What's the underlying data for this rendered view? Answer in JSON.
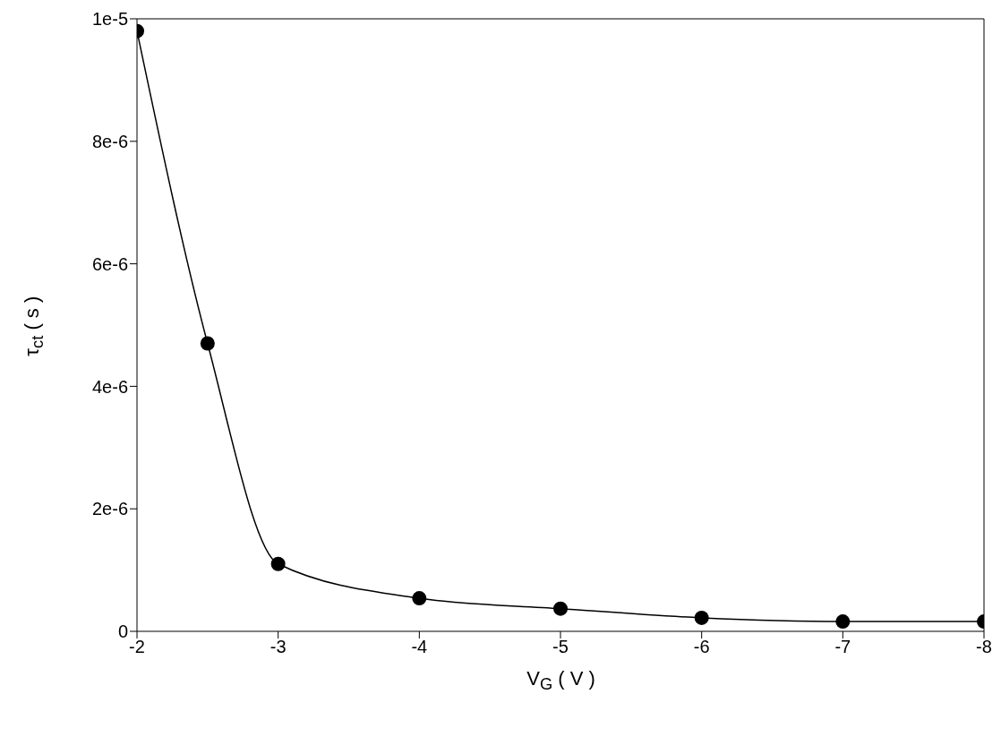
{
  "chart_data": {
    "type": "line",
    "xlabel": "V$_{G}$ ( V )",
    "ylabel": "τ$_{ct}$ ( s )",
    "x": [
      -2,
      -2.5,
      -3,
      -4,
      -5,
      -6,
      -7,
      -8
    ],
    "series": [
      {
        "color": "#000000",
        "values": [
          9.8e-06,
          4.7e-06,
          1.1e-06,
          5.4e-07,
          3.7e-07,
          2.2e-07,
          1.6e-07,
          1.6e-07
        ]
      }
    ],
    "xlim": [
      -2,
      -8
    ],
    "xticks": [
      -2,
      -3,
      -4,
      -5,
      -6,
      -7,
      -8
    ],
    "ylim": [
      0,
      1e-05
    ],
    "yticks": [
      0,
      {
        "value": 2e-06,
        "label": "2e-6"
      },
      {
        "value": 4e-06,
        "label": "4e-6"
      },
      {
        "value": 6e-06,
        "label": "6e-6"
      },
      {
        "value": 8e-06,
        "label": "8e-6"
      },
      {
        "value": 1e-05,
        "label": "1e-5"
      }
    ],
    "marker": "circle",
    "line_style": "solid",
    "grid": false
  }
}
